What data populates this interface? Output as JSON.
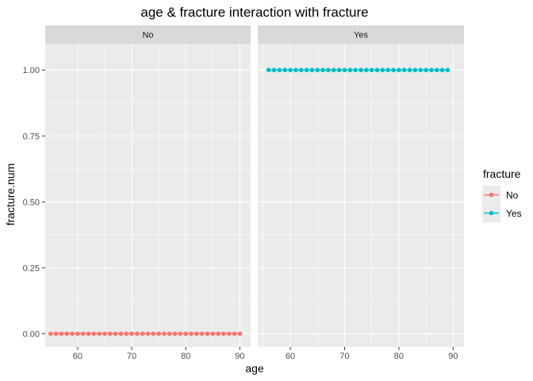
{
  "chart_data": {
    "type": "line",
    "title": "age & fracture  interaction with fracture",
    "xlabel": "age",
    "ylabel": "fracture.num",
    "xlim": [
      54,
      92
    ],
    "ylim": [
      -0.05,
      1.1
    ],
    "x_ticks": [
      60,
      70,
      80,
      90
    ],
    "y_ticks": [
      0.0,
      0.25,
      0.5,
      0.75,
      1.0
    ],
    "y_tick_labels": [
      "0.00",
      "0.25",
      "0.50",
      "0.75",
      "1.00"
    ],
    "grid": true,
    "legend_position": "right",
    "legend_title": "fracture",
    "facet_by": "fracture",
    "facets": [
      {
        "label": "No",
        "series": {
          "name": "No",
          "color": "#F8766D",
          "x": [
            55,
            56,
            57,
            58,
            59,
            60,
            61,
            62,
            63,
            64,
            65,
            66,
            67,
            68,
            69,
            70,
            71,
            72,
            73,
            74,
            75,
            76,
            77,
            78,
            79,
            80,
            81,
            82,
            83,
            84,
            85,
            86,
            87,
            88,
            89,
            90
          ],
          "y": [
            0,
            0,
            0,
            0,
            0,
            0,
            0,
            0,
            0,
            0,
            0,
            0,
            0,
            0,
            0,
            0,
            0,
            0,
            0,
            0,
            0,
            0,
            0,
            0,
            0,
            0,
            0,
            0,
            0,
            0,
            0,
            0,
            0,
            0,
            0,
            0
          ]
        }
      },
      {
        "label": "Yes",
        "series": {
          "name": "Yes",
          "color": "#00BFC4",
          "x": [
            56,
            57,
            58,
            59,
            60,
            61,
            62,
            63,
            64,
            65,
            66,
            67,
            68,
            69,
            70,
            71,
            72,
            73,
            74,
            75,
            76,
            77,
            78,
            79,
            80,
            81,
            82,
            83,
            84,
            85,
            86,
            87,
            88,
            89
          ],
          "y": [
            1,
            1,
            1,
            1,
            1,
            1,
            1,
            1,
            1,
            1,
            1,
            1,
            1,
            1,
            1,
            1,
            1,
            1,
            1,
            1,
            1,
            1,
            1,
            1,
            1,
            1,
            1,
            1,
            1,
            1,
            1,
            1,
            1,
            1
          ]
        }
      }
    ],
    "legend": [
      {
        "label": "No",
        "color": "#F8766D"
      },
      {
        "label": "Yes",
        "color": "#00BFC4"
      }
    ]
  }
}
